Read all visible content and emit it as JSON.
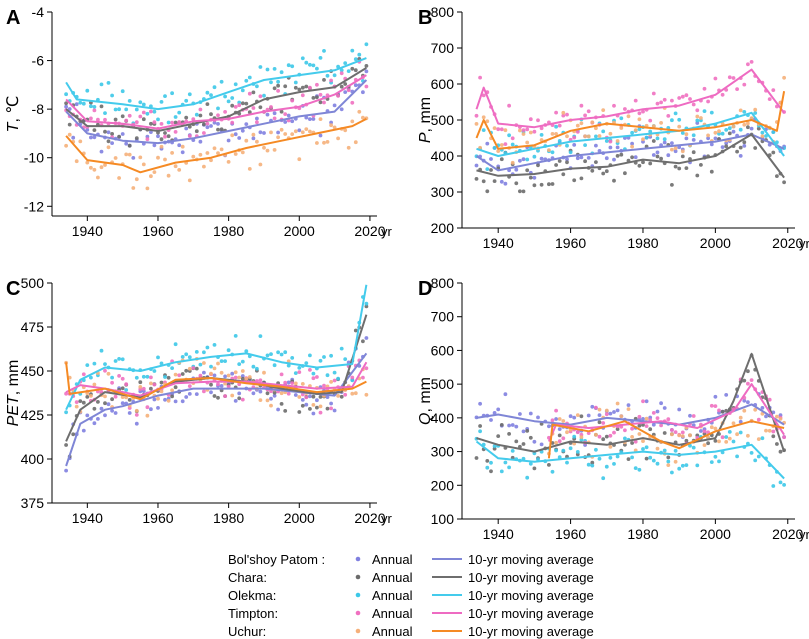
{
  "stations": [
    {
      "name": "Bol'shoy Patom :",
      "color": "#8080e0",
      "line_color": "#7f86d6",
      "annual_label": "Annual",
      "ma_label": "10-yr moving average"
    },
    {
      "name": "Chara:",
      "color": "#6b6b6b",
      "line_color": "#6e6e6e",
      "annual_label": "Annual",
      "ma_label": "10-yr moving average"
    },
    {
      "name": "Olekma:",
      "color": "#3cc8e8",
      "line_color": "#44cbec",
      "annual_label": "Annual",
      "ma_label": "10-yr moving average"
    },
    {
      "name": "Timpton:",
      "color": "#f070c0",
      "line_color": "#ee6bc2",
      "annual_label": "Annual",
      "ma_label": "10-yr moving average"
    },
    {
      "name": "Uchur:",
      "color": "#f5b07a",
      "line_color": "#f58a24",
      "annual_label": "Annual",
      "ma_label": "10-yr moving average"
    }
  ],
  "chart_data": [
    {
      "type": "scatter+line",
      "panel": "A",
      "ylabel_italic": "T",
      "ylabel_rest": ", ℃",
      "xunit": "yr",
      "xlim": [
        1930,
        2022
      ],
      "ylim": [
        -12.4,
        -4
      ],
      "xticks": [
        1940,
        1960,
        1980,
        2000,
        2020
      ],
      "yticks": [
        -12,
        -10,
        -8,
        -6,
        -4
      ],
      "series": [
        {
          "name": "Bol'shoy Patom",
          "ma": [
            [
              1934,
              -8.1
            ],
            [
              1940,
              -9.0
            ],
            [
              1950,
              -9.3
            ],
            [
              1960,
              -9.4
            ],
            [
              1970,
              -9.2
            ],
            [
              1980,
              -8.9
            ],
            [
              1990,
              -8.6
            ],
            [
              2000,
              -8.3
            ],
            [
              2010,
              -8.1
            ],
            [
              2019,
              -6.8
            ]
          ]
        },
        {
          "name": "Chara",
          "ma": [
            [
              1934,
              -8.0
            ],
            [
              1940,
              -8.7
            ],
            [
              1950,
              -8.7
            ],
            [
              1960,
              -8.9
            ],
            [
              1970,
              -8.6
            ],
            [
              1980,
              -8.3
            ],
            [
              1990,
              -7.6
            ],
            [
              2000,
              -7.3
            ],
            [
              2010,
              -7.1
            ],
            [
              2019,
              -6.3
            ]
          ]
        },
        {
          "name": "Olekma",
          "ma": [
            [
              1934,
              -6.9
            ],
            [
              1937,
              -7.6
            ],
            [
              1950,
              -7.8
            ],
            [
              1960,
              -8.0
            ],
            [
              1970,
              -7.8
            ],
            [
              1980,
              -7.3
            ],
            [
              1990,
              -6.8
            ],
            [
              2000,
              -6.6
            ],
            [
              2010,
              -6.4
            ],
            [
              2019,
              -5.9
            ]
          ]
        },
        {
          "name": "Timpton",
          "ma": [
            [
              1934,
              -7.6
            ],
            [
              1940,
              -8.5
            ],
            [
              1950,
              -8.6
            ],
            [
              1960,
              -8.8
            ],
            [
              1970,
              -8.5
            ],
            [
              1980,
              -8.4
            ],
            [
              1990,
              -8.1
            ],
            [
              2000,
              -7.9
            ],
            [
              2010,
              -7.4
            ],
            [
              2019,
              -6.6
            ]
          ]
        },
        {
          "name": "Uchur",
          "ma": [
            [
              1934,
              -9.1
            ],
            [
              1940,
              -10.1
            ],
            [
              1950,
              -10.3
            ],
            [
              1955,
              -10.6
            ],
            [
              1965,
              -10.2
            ],
            [
              1975,
              -10.0
            ],
            [
              1985,
              -9.6
            ],
            [
              1995,
              -9.3
            ],
            [
              2005,
              -9.0
            ],
            [
              2015,
              -8.7
            ],
            [
              2019,
              -8.4
            ]
          ]
        }
      ]
    },
    {
      "type": "scatter+line",
      "panel": "B",
      "ylabel_italic": "P",
      "ylabel_rest": ", mm",
      "xunit": "yr",
      "xlim": [
        1930,
        2022
      ],
      "ylim": [
        200,
        800
      ],
      "xticks": [
        1940,
        1960,
        1980,
        2000,
        2020
      ],
      "yticks": [
        200,
        300,
        400,
        500,
        600,
        700,
        800
      ],
      "series": [
        {
          "name": "Bol'shoy Patom",
          "ma": [
            [
              1934,
              400
            ],
            [
              1940,
              360
            ],
            [
              1950,
              380
            ],
            [
              1960,
              400
            ],
            [
              1970,
              410
            ],
            [
              1980,
              420
            ],
            [
              1990,
              430
            ],
            [
              2000,
              440
            ],
            [
              2010,
              460
            ],
            [
              2019,
              420
            ]
          ]
        },
        {
          "name": "Chara",
          "ma": [
            [
              1934,
              360
            ],
            [
              1940,
              345
            ],
            [
              1950,
              350
            ],
            [
              1960,
              365
            ],
            [
              1970,
              370
            ],
            [
              1980,
              390
            ],
            [
              1990,
              380
            ],
            [
              2000,
              400
            ],
            [
              2010,
              460
            ],
            [
              2019,
              340
            ]
          ]
        },
        {
          "name": "Olekma",
          "ma": [
            [
              1934,
              420
            ],
            [
              1940,
              400
            ],
            [
              1950,
              420
            ],
            [
              1960,
              440
            ],
            [
              1970,
              450
            ],
            [
              1980,
              460
            ],
            [
              1990,
              470
            ],
            [
              2000,
              490
            ],
            [
              2010,
              520
            ],
            [
              2019,
              400
            ]
          ]
        },
        {
          "name": "Timpton",
          "ma": [
            [
              1934,
              530
            ],
            [
              1936,
              590
            ],
            [
              1940,
              490
            ],
            [
              1950,
              480
            ],
            [
              1960,
              500
            ],
            [
              1970,
              510
            ],
            [
              1980,
              530
            ],
            [
              1990,
              540
            ],
            [
              2000,
              570
            ],
            [
              2010,
              640
            ],
            [
              2019,
              520
            ]
          ]
        },
        {
          "name": "Uchur",
          "ma": [
            [
              1934,
              450
            ],
            [
              1936,
              500
            ],
            [
              1940,
              420
            ],
            [
              1950,
              430
            ],
            [
              1960,
              470
            ],
            [
              1970,
              490
            ],
            [
              1980,
              480
            ],
            [
              1990,
              470
            ],
            [
              2000,
              480
            ],
            [
              2010,
              500
            ],
            [
              2017,
              470
            ],
            [
              2019,
              580
            ]
          ]
        }
      ]
    },
    {
      "type": "scatter+line",
      "panel": "C",
      "ylabel_italic": "PET",
      "ylabel_rest": ", mm",
      "xunit": "yr",
      "xlim": [
        1930,
        2022
      ],
      "ylim": [
        375,
        500
      ],
      "xticks": [
        1940,
        1960,
        1980,
        2000,
        2020
      ],
      "yticks": [
        375,
        400,
        425,
        450,
        475,
        500
      ],
      "series": [
        {
          "name": "Bol'shoy Patom",
          "ma": [
            [
              1934,
              396
            ],
            [
              1938,
              420
            ],
            [
              1945,
              428
            ],
            [
              1950,
              430
            ],
            [
              1960,
              436
            ],
            [
              1970,
              440
            ],
            [
              1980,
              440
            ],
            [
              1990,
              440
            ],
            [
              2000,
              438
            ],
            [
              2010,
              436
            ],
            [
              2019,
              460
            ]
          ]
        },
        {
          "name": "Chara",
          "ma": [
            [
              1934,
              410
            ],
            [
              1938,
              428
            ],
            [
              1945,
              438
            ],
            [
              1955,
              435
            ],
            [
              1965,
              444
            ],
            [
              1975,
              446
            ],
            [
              1985,
              444
            ],
            [
              1995,
              440
            ],
            [
              2005,
              437
            ],
            [
              2012,
              438
            ],
            [
              2019,
              482
            ]
          ]
        },
        {
          "name": "Olekma",
          "ma": [
            [
              1934,
              428
            ],
            [
              1938,
              445
            ],
            [
              1945,
              452
            ],
            [
              1955,
              450
            ],
            [
              1965,
              455
            ],
            [
              1975,
              458
            ],
            [
              1985,
              460
            ],
            [
              1995,
              455
            ],
            [
              2005,
              452
            ],
            [
              2015,
              454
            ],
            [
              2019,
              499
            ]
          ]
        },
        {
          "name": "Timpton",
          "ma": [
            [
              1934,
              438
            ],
            [
              1938,
              442
            ],
            [
              1945,
              440
            ],
            [
              1955,
              436
            ],
            [
              1965,
              443
            ],
            [
              1975,
              444
            ],
            [
              1985,
              444
            ],
            [
              1995,
              442
            ],
            [
              2005,
              440
            ],
            [
              2015,
              441
            ],
            [
              2019,
              455
            ]
          ]
        },
        {
          "name": "Uchur",
          "ma": [
            [
              1934,
              455
            ],
            [
              1935,
              437
            ],
            [
              1945,
              440
            ],
            [
              1955,
              434
            ],
            [
              1965,
              445
            ],
            [
              1975,
              446
            ],
            [
              1985,
              443
            ],
            [
              1995,
              441
            ],
            [
              2005,
              438
            ],
            [
              2015,
              440
            ],
            [
              2019,
              444
            ]
          ]
        }
      ]
    },
    {
      "type": "scatter+line",
      "panel": "D",
      "ylabel_italic": "Q",
      "ylabel_rest": ", mm",
      "xunit": "yr",
      "xlim": [
        1930,
        2022
      ],
      "ylim": [
        100,
        800
      ],
      "xticks": [
        1940,
        1960,
        1980,
        2000,
        2020
      ],
      "yticks": [
        100,
        200,
        300,
        400,
        500,
        600,
        700,
        800
      ],
      "series": [
        {
          "name": "Bol'shoy Patom",
          "ma": [
            [
              1934,
              400
            ],
            [
              1940,
              410
            ],
            [
              1950,
              390
            ],
            [
              1960,
              380
            ],
            [
              1970,
              400
            ],
            [
              1980,
              390
            ],
            [
              1990,
              380
            ],
            [
              2000,
              400
            ],
            [
              2010,
              440
            ],
            [
              2019,
              380
            ]
          ]
        },
        {
          "name": "Chara",
          "ma": [
            [
              1934,
              340
            ],
            [
              1940,
              320
            ],
            [
              1950,
              300
            ],
            [
              1960,
              330
            ],
            [
              1970,
              320
            ],
            [
              1980,
              340
            ],
            [
              1990,
              320
            ],
            [
              2000,
              340
            ],
            [
              2005,
              450
            ],
            [
              2010,
              590
            ],
            [
              2019,
              300
            ]
          ]
        },
        {
          "name": "Olekma",
          "ma": [
            [
              1934,
              330
            ],
            [
              1940,
              280
            ],
            [
              1950,
              270
            ],
            [
              1960,
              280
            ],
            [
              1970,
              290
            ],
            [
              1980,
              300
            ],
            [
              1990,
              290
            ],
            [
              2000,
              300
            ],
            [
              2010,
              320
            ],
            [
              2019,
              220
            ]
          ]
        },
        {
          "name": "Timpton",
          "ma": [
            [
              1954,
              330
            ],
            [
              1956,
              380
            ],
            [
              1965,
              370
            ],
            [
              1975,
              380
            ],
            [
              1985,
              390
            ],
            [
              1995,
              370
            ],
            [
              2005,
              420
            ],
            [
              2010,
              500
            ],
            [
              2019,
              350
            ]
          ]
        },
        {
          "name": "Uchur",
          "ma": [
            [
              1954,
              280
            ],
            [
              1955,
              380
            ],
            [
              1965,
              360
            ],
            [
              1975,
              390
            ],
            [
              1985,
              330
            ],
            [
              1990,
              310
            ],
            [
              2000,
              360
            ],
            [
              2010,
              390
            ],
            [
              2019,
              370
            ]
          ]
        }
      ]
    }
  ]
}
